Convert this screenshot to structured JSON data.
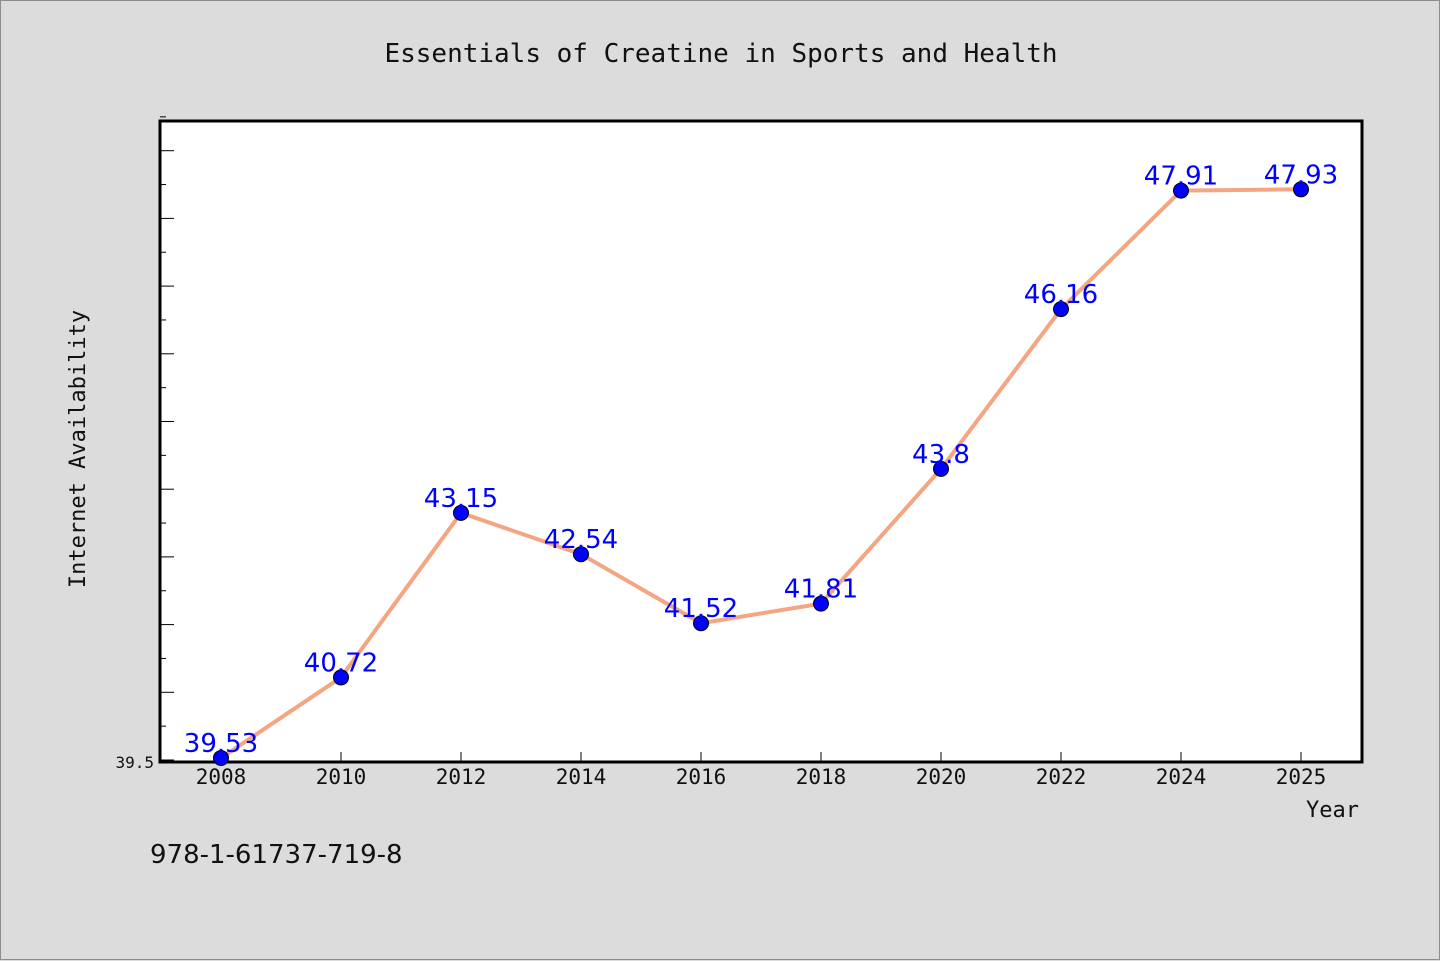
{
  "chart_data": {
    "type": "line",
    "title": "Essentials of Creatine in Sports and Health",
    "xlabel": "Year",
    "ylabel": "Internet Availability",
    "x": [
      "2008",
      "2010",
      "2012",
      "2014",
      "2016",
      "2018",
      "2020",
      "2022",
      "2024",
      "2025"
    ],
    "series": [
      {
        "values": [
          39.53,
          40.72,
          43.15,
          42.54,
          41.52,
          41.81,
          43.8,
          46.16,
          47.91,
          47.93
        ],
        "labels": [
          "39.53",
          "40.72",
          "43.15",
          "42.54",
          "41.52",
          "41.81",
          "43.8",
          "46.16",
          "47.91",
          "47.93"
        ]
      }
    ],
    "ylim": [
      39.5,
      49.0
    ],
    "y_tick_labels": [
      "39.5"
    ],
    "grid": false,
    "legend": "none",
    "colors": {
      "line": "#f4a582",
      "marker": "#0000ff",
      "data_label": "#0000ff",
      "background": "#dcdcdc",
      "plot_area": "#ffffff"
    }
  },
  "footnote": "978-1-61737-719-8"
}
